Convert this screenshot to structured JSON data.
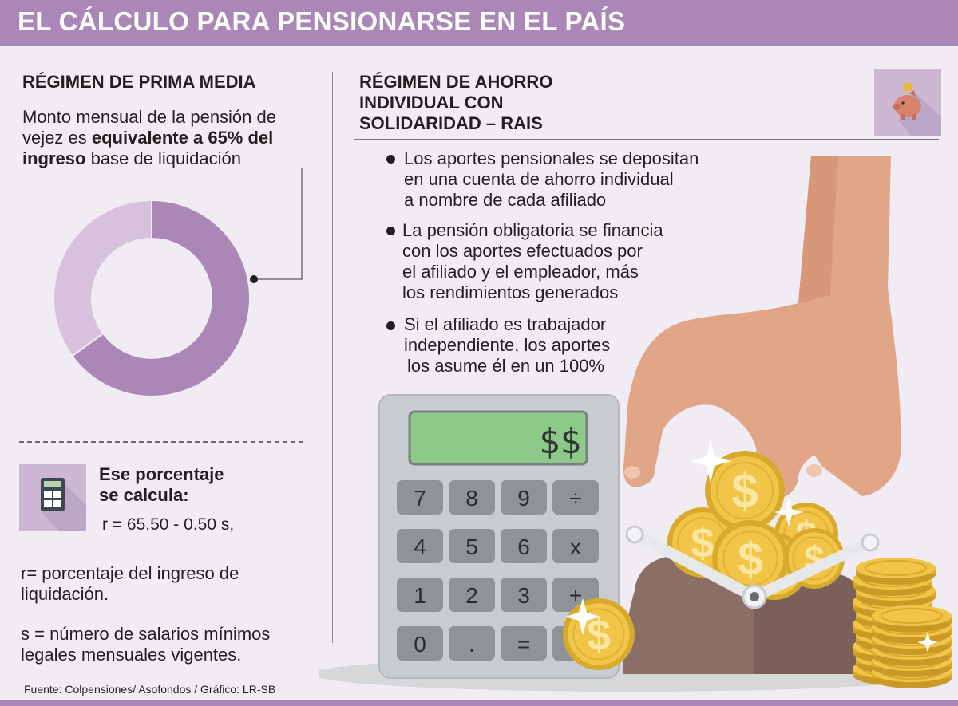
{
  "header": {
    "title": "EL CÁLCULO PARA PENSIONARSE EN EL PAÍS"
  },
  "left": {
    "title": "RÉGIMEN DE PRIMA MEDIA",
    "desc_plain1": "Monto mensual de la pensión de vejez es ",
    "desc_bold": "equivalente a 65% del ingreso",
    "desc_plain2": " base de liquidación",
    "donut": {
      "percent": 65,
      "color_main": "#ab87b8",
      "color_rest": "#d7c1dd"
    },
    "calc_label": "Ese porcentaje se calcula:",
    "formula": "r = 65.50 - 0.50 s,",
    "def_r_key": "r=",
    "def_r_text": " porcentaje del ingreso de liquidación.",
    "def_s_key": "s",
    "def_s_text": " = número de salarios mínimos legales mensuales vigentes.",
    "source": "Fuente: Colpensiones/ Asofondos  / Gráfico: LR-SB",
    "icon": "calculator-icon"
  },
  "right": {
    "title_line1": "RÉGIMEN DE AHORRO",
    "title_line2": "INDIVIDUAL CON",
    "title_line3": "SOLIDARIDAD – RAIS",
    "icon": "piggy-bank-icon",
    "bullets": [
      {
        "l1": "Los aportes pensionales se depositan",
        "l2": "en una cuenta de ahorro individual",
        "l3": "a nombre de cada afiliado"
      },
      {
        "l1": "La pensión obligatoria se financia",
        "l2": "con los aportes efectuados por",
        "l3": "el afiliado y el empleador, más",
        "l4": "los rendimientos generados"
      },
      {
        "l1": "Si el afiliado es trabajador",
        "l2": "independiente, los aportes",
        "l3": "los asume él en un 100%"
      }
    ],
    "calculator": {
      "display": "$$",
      "keys": [
        "7",
        "8",
        "9",
        "÷",
        "4",
        "5",
        "6",
        "x",
        "1",
        "2",
        "3",
        "+",
        "0",
        ".",
        "=",
        "-"
      ]
    },
    "coin_symbol": "$"
  }
}
